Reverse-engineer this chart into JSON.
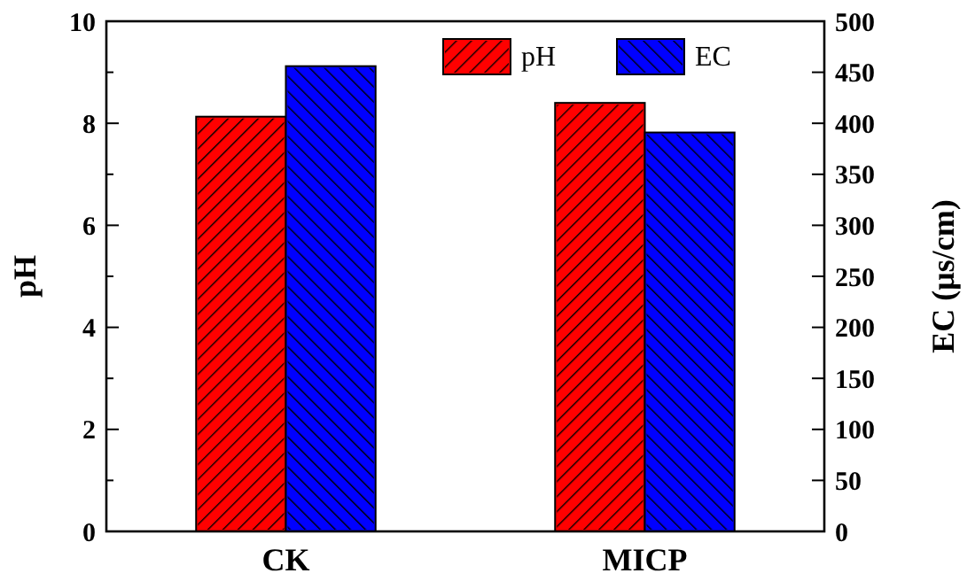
{
  "chart_data": {
    "type": "bar",
    "categories": [
      "CK",
      "MICP"
    ],
    "ylabel": "pH",
    "y2label": "EC (μs/cm)",
    "series": [
      {
        "name": "pH",
        "color": "#ff0000",
        "values": [
          8.13,
          8.4
        ]
      },
      {
        "name": "EC",
        "color": "#0000ff",
        "values": [
          456,
          391
        ],
        "axis": "y2"
      }
    ],
    "ylim": [
      0,
      10
    ],
    "yticks": [
      0,
      {
        "value": 1,
        "label": null
      },
      2,
      {
        "value": 3,
        "label": null
      },
      4,
      {
        "value": 5,
        "label": null
      },
      6,
      {
        "value": 7,
        "label": null
      },
      8,
      {
        "value": 9,
        "label": null
      },
      10
    ],
    "y2lim": [
      0,
      500
    ],
    "y2ticks": [
      0,
      50,
      100,
      150,
      200,
      250,
      300,
      350,
      400,
      450,
      500
    ],
    "legend": "top",
    "grid": false
  }
}
